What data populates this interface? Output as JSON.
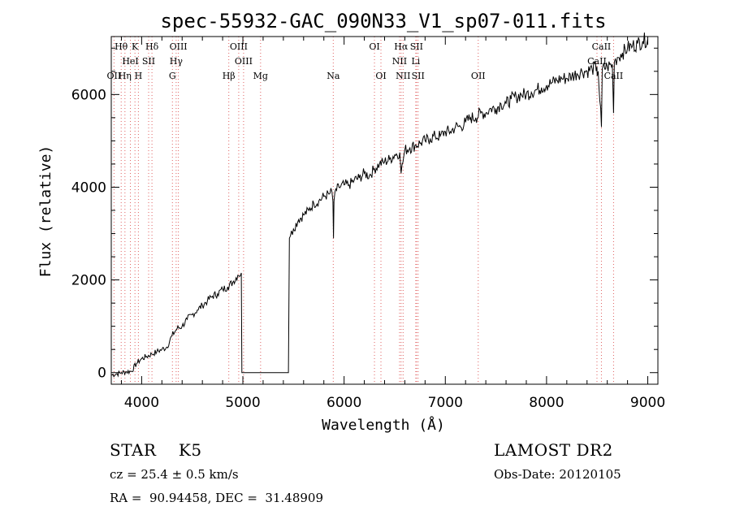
{
  "chart_data": {
    "type": "line",
    "title": "spec-55932-GAC_090N33_V1_sp07-011.fits",
    "xlabel": "Wavelength (Å)",
    "ylabel": "Flux (relative)",
    "xlim": [
      3700,
      9100
    ],
    "ylim": [
      -250,
      7250
    ],
    "xticks": [
      4000,
      5000,
      6000,
      7000,
      8000,
      9000
    ],
    "yticks": [
      0,
      2000,
      4000,
      6000
    ],
    "grid": false,
    "series": [
      {
        "x": [
          3700,
          3750,
          3800,
          3850,
          3900,
          3950,
          4000,
          4050,
          4100,
          4150,
          4200,
          4250,
          4300,
          4350,
          4400,
          4450,
          4500,
          4550,
          4600,
          4650,
          4700,
          4750,
          4800,
          4850,
          4900,
          4950,
          4985,
          4990,
          5000,
          5010,
          5100,
          5200,
          5300,
          5400,
          5450,
          5460,
          5470,
          5500,
          5550,
          5600,
          5650,
          5700,
          5750,
          5800,
          5850,
          5880,
          5890,
          5895,
          5900,
          5910,
          5950,
          6000,
          6050,
          6100,
          6150,
          6200,
          6250,
          6300,
          6350,
          6400,
          6450,
          6500,
          6550,
          6563,
          6600,
          6650,
          6700,
          6750,
          6800,
          6850,
          6900,
          6950,
          7000,
          7050,
          7100,
          7150,
          7200,
          7250,
          7300,
          7350,
          7400,
          7450,
          7500,
          7550,
          7600,
          7650,
          7700,
          7750,
          7800,
          7850,
          7900,
          7950,
          8000,
          8050,
          8100,
          8150,
          8200,
          8250,
          8300,
          8350,
          8400,
          8450,
          8498,
          8500,
          8510,
          8542,
          8550,
          8600,
          8650,
          8662,
          8670,
          8700,
          8750,
          8800,
          8850,
          8900,
          8950,
          9000
        ],
        "y": [
          -50,
          -30,
          0,
          20,
          30,
          200,
          300,
          350,
          400,
          450,
          500,
          550,
          800,
          950,
          1000,
          1150,
          1250,
          1350,
          1450,
          1550,
          1650,
          1700,
          1800,
          1850,
          1950,
          2100,
          2150,
          0,
          0,
          0,
          0,
          0,
          0,
          0,
          0,
          2900,
          2950,
          3100,
          3300,
          3400,
          3500,
          3650,
          3700,
          3800,
          3850,
          3900,
          3700,
          2900,
          3700,
          3900,
          4000,
          4050,
          4050,
          4150,
          4200,
          4300,
          4250,
          4400,
          4500,
          4550,
          4600,
          4700,
          4750,
          4300,
          4800,
          4850,
          4900,
          4950,
          5000,
          5050,
          5100,
          5100,
          5200,
          5200,
          5300,
          5300,
          5400,
          5500,
          5500,
          5600,
          5600,
          5700,
          5700,
          5800,
          5800,
          5900,
          5950,
          6000,
          6000,
          6050,
          6100,
          6150,
          6200,
          6250,
          6300,
          6350,
          6350,
          6400,
          6450,
          6500,
          6500,
          6550,
          6600,
          6400,
          6500,
          5300,
          6550,
          6600,
          6650,
          5600,
          6700,
          6800,
          6900,
          7000,
          7050,
          7100,
          7150,
          7200
        ]
      }
    ],
    "lines": [
      {
        "label": "Hθ",
        "wl": 3798
      },
      {
        "label": "K",
        "wl": 3934
      },
      {
        "label": "Hδ",
        "wl": 4102
      },
      {
        "label": "OIII",
        "wl": 4363
      },
      {
        "label": "OIII",
        "wl": 4959
      },
      {
        "label": "OI",
        "wl": 6300
      },
      {
        "label": "Hα",
        "wl": 6563
      },
      {
        "label": "SII",
        "wl": 6716
      },
      {
        "label": "CaII",
        "wl": 8542
      },
      {
        "label": "HeI",
        "wl": 3889
      },
      {
        "label": "SII",
        "wl": 4069
      },
      {
        "label": "Hγ",
        "wl": 4341
      },
      {
        "label": "OIII",
        "wl": 5007
      },
      {
        "label": "NII",
        "wl": 6548
      },
      {
        "label": "Li",
        "wl": 6708
      },
      {
        "label": "CaII",
        "wl": 8498
      },
      {
        "label": "OII",
        "wl": 3727
      },
      {
        "label": "Hη",
        "wl": 3835
      },
      {
        "label": "H",
        "wl": 3968
      },
      {
        "label": "G",
        "wl": 4304
      },
      {
        "label": "Hβ",
        "wl": 4861
      },
      {
        "label": "Mg",
        "wl": 5175
      },
      {
        "label": "Na",
        "wl": 5893
      },
      {
        "label": "OI",
        "wl": 6364
      },
      {
        "label": "NII",
        "wl": 6583
      },
      {
        "label": "SII",
        "wl": 6731
      },
      {
        "label": "OII",
        "wl": 7325
      },
      {
        "label": "CaII",
        "wl": 8662
      }
    ]
  },
  "info": {
    "object": "STAR    K5",
    "survey": "LAMOST DR2",
    "cz": "cz = 25.4 ± 0.5 km/s",
    "obsdate": "Obs-Date: 20120105",
    "radec": "RA =  90.94458, DEC =  31.48909"
  }
}
